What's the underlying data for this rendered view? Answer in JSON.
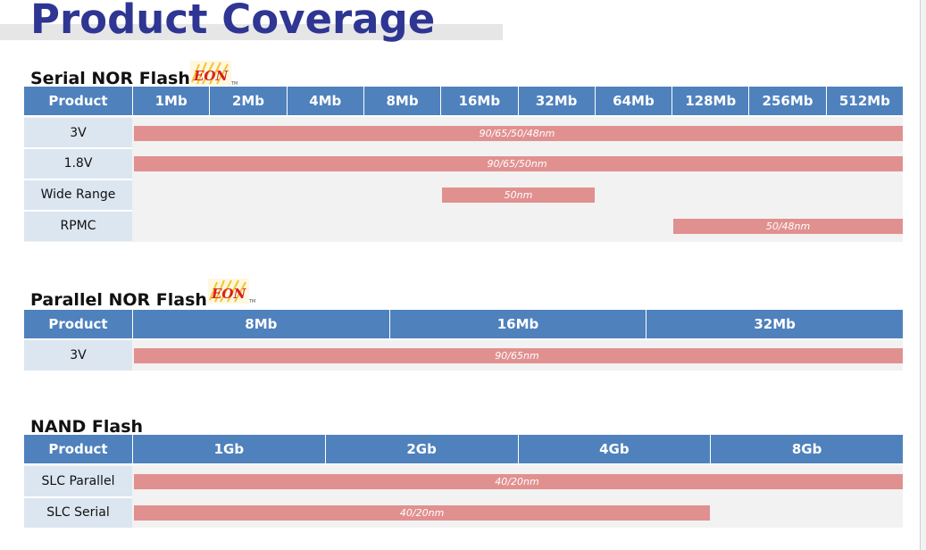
{
  "page_title": "Product Coverage",
  "serial_nor": {
    "title": "Serial NOR Flash",
    "logo_text": "EON",
    "header_product": "Product",
    "columns": [
      "1Mb",
      "2Mb",
      "4Mb",
      "8Mb",
      "16Mb",
      "32Mb",
      "64Mb",
      "128Mb",
      "256Mb",
      "512Mb"
    ],
    "rows": [
      {
        "label": "3V",
        "tech": "90/65/50/48nm",
        "from": "1Mb",
        "to": "512Mb"
      },
      {
        "label": "1.8V",
        "tech": "90/65/50nm",
        "from": "1Mb",
        "to": "512Mb"
      },
      {
        "label": "Wide Range",
        "tech": "50nm",
        "from": "16Mb",
        "to": "32Mb"
      },
      {
        "label": "RPMC",
        "tech": "50/48nm",
        "from": "128Mb",
        "to": "512Mb"
      }
    ]
  },
  "parallel_nor": {
    "title": "Parallel NOR Flash",
    "logo_text": "EON",
    "header_product": "Product",
    "columns": [
      "8Mb",
      "16Mb",
      "32Mb"
    ],
    "rows": [
      {
        "label": "3V",
        "tech": "90/65nm",
        "from": "8Mb",
        "to": "32Mb"
      }
    ]
  },
  "nand": {
    "title": "NAND Flash",
    "header_product": "Product",
    "columns": [
      "1Gb",
      "2Gb",
      "4Gb",
      "8Gb"
    ],
    "rows": [
      {
        "label": "SLC Parallel",
        "tech": "40/20nm",
        "from": "1Gb",
        "to": "8Gb"
      },
      {
        "label": "SLC Serial",
        "tech": "40/20nm",
        "from": "1Gb",
        "to": "4Gb"
      }
    ]
  },
  "colors": {
    "title": "#2e3592",
    "header": "#4f81bd",
    "label_bg": "#dce6f1",
    "body_bg": "#f2f2f2",
    "bar": "#e19090"
  }
}
